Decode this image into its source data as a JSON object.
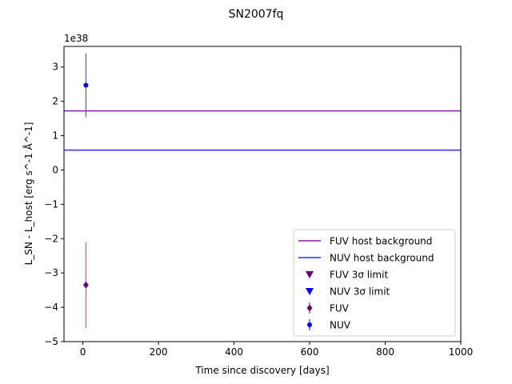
{
  "chart_data": {
    "type": "scatter",
    "title": "SN2007fq",
    "xlabel": "Time since discovery [days]",
    "ylabel": "L_SN - L_host [erg s^-1 Å^-1]",
    "y_offset_label": "1e38",
    "xlim": [
      -50,
      1000
    ],
    "ylim": [
      -5,
      3.6
    ],
    "x_ticks": [
      0,
      200,
      400,
      600,
      800,
      1000
    ],
    "y_ticks": [
      -5,
      -4,
      -3,
      -2,
      -1,
      0,
      1,
      2,
      3
    ],
    "x_tick_labels": [
      "0",
      "200",
      "400",
      "600",
      "800",
      "1000"
    ],
    "y_tick_labels": [
      "−5",
      "−4",
      "−3",
      "−2",
      "−1",
      "0",
      "1",
      "2",
      "3"
    ],
    "grid": false,
    "legend_position": "bottom-right",
    "hlines": [
      {
        "name": "FUV host background",
        "y": 1.72,
        "color": "#8a1ba3"
      },
      {
        "name": "NUV host background",
        "y": 0.58,
        "color": "#2b2bff"
      }
    ],
    "upper_limits": [
      {
        "name": "FUV 3σ limit",
        "color": "#6b006b",
        "marker": "triangle-down",
        "points": []
      },
      {
        "name": "NUV 3σ limit",
        "color": "#0000ff",
        "marker": "triangle-down",
        "points": []
      }
    ],
    "series": [
      {
        "name": "FUV",
        "color": "#6b006b",
        "errcolor": "#b040c0",
        "marker": "diamond",
        "points": [
          {
            "x": 8,
            "y": -3.35,
            "yerr_low": 1.25,
            "yerr_high": 1.25
          }
        ]
      },
      {
        "name": "NUV",
        "color": "#0000ff",
        "errcolor": "#3a3aff",
        "marker": "circle",
        "points": [
          {
            "x": 8,
            "y": 2.47,
            "yerr_low": 0.93,
            "yerr_high": 0.93
          }
        ]
      }
    ],
    "legend_entries": [
      {
        "label": "FUV host background",
        "kind": "line",
        "color": "#8a1ba3"
      },
      {
        "label": "NUV host background",
        "kind": "line",
        "color": "#2b2bff"
      },
      {
        "label": "FUV 3σ limit",
        "kind": "triangle-down",
        "color": "#6b006b"
      },
      {
        "label": "NUV 3σ limit",
        "kind": "triangle-down",
        "color": "#0000ff"
      },
      {
        "label": "FUV",
        "kind": "diamond",
        "color": "#6b006b"
      },
      {
        "label": "NUV",
        "kind": "circle",
        "color": "#0000ff"
      }
    ]
  }
}
